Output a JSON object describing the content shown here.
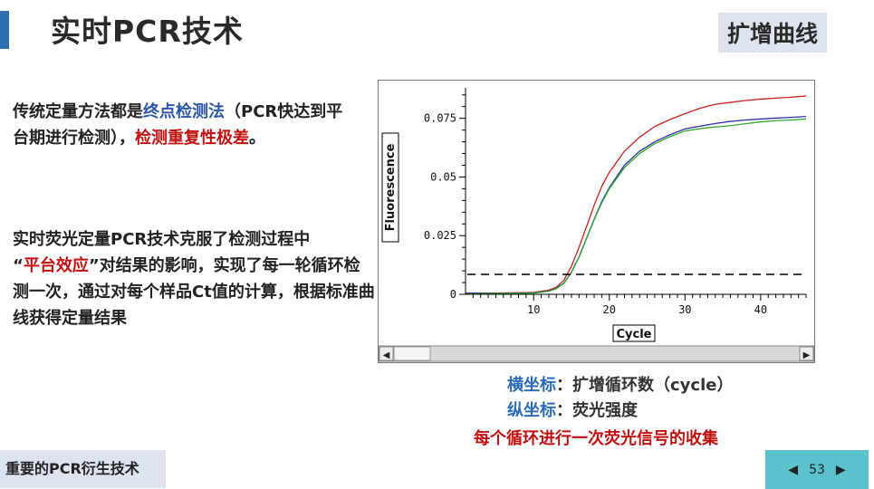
{
  "slide": {
    "title": "实时PCR技术",
    "tag": "扩增曲线",
    "para1": {
      "a": "传统定量方法都是",
      "b": "终点检测法",
      "c": "（PCR快达到平台期进行检测），",
      "d": "检测重复性极差",
      "e": "。"
    },
    "para2": {
      "a": "实时荧光定量PCR技术克服了检测过程中",
      "b": "“",
      "c": "平台效应",
      "d": "”对结果的影响，实现了每一轮循环检测一次，通过对每个样品Ct值的计算，根据标准曲线获得定量结果"
    },
    "caption1_key": "横坐标",
    "caption1_val": "：扩增循环数（cycle）",
    "caption2_key": "纵坐标",
    "caption2_val": "：荧光强度",
    "caption3": "每个循环进行一次荧光信号的收集",
    "footer_left": "重要的PCR衍生技术",
    "page_number": "53",
    "prev_icon": "◀",
    "next_icon": "▶"
  },
  "chart_data": {
    "type": "line",
    "xlabel": "Cycle",
    "ylabel": "Fluorescence",
    "xlim": [
      1,
      46
    ],
    "ylim": [
      0,
      0.088
    ],
    "x_ticks": [
      10,
      20,
      30,
      40
    ],
    "y_ticks": [
      {
        "value": 0,
        "label": "0"
      },
      {
        "value": 0.025,
        "label": "0.025"
      },
      {
        "value": 0.05,
        "label": "0.05"
      },
      {
        "value": 0.075,
        "label": "0.075"
      }
    ],
    "threshold": 0.0085,
    "colors": {
      "red": "#cc1f1f",
      "blue": "#2a2fa8",
      "green": "#2ea82e",
      "threshold": "#000000"
    },
    "series": [
      {
        "color": "red",
        "x": [
          1,
          5,
          10,
          12,
          13,
          14,
          15,
          16,
          17,
          18,
          19,
          20,
          22,
          24,
          26,
          28,
          30,
          32,
          34,
          36,
          38,
          40,
          42,
          44,
          46
        ],
        "y": [
          0.0005,
          0.0005,
          0.0008,
          0.0018,
          0.003,
          0.006,
          0.012,
          0.02,
          0.029,
          0.038,
          0.046,
          0.052,
          0.061,
          0.067,
          0.0715,
          0.0745,
          0.077,
          0.0793,
          0.081,
          0.0818,
          0.0826,
          0.0832,
          0.0836,
          0.084,
          0.0845
        ]
      },
      {
        "color": "blue",
        "x": [
          1,
          5,
          10,
          12,
          13,
          14,
          15,
          16,
          17,
          18,
          19,
          20,
          22,
          24,
          26,
          28,
          30,
          32,
          34,
          36,
          38,
          40,
          42,
          44,
          46
        ],
        "y": [
          0.0005,
          0.0004,
          0.0006,
          0.0014,
          0.0025,
          0.0048,
          0.0095,
          0.016,
          0.024,
          0.032,
          0.0395,
          0.0455,
          0.055,
          0.061,
          0.065,
          0.068,
          0.0705,
          0.0717,
          0.0728,
          0.0737,
          0.0743,
          0.0747,
          0.0751,
          0.0754,
          0.0758
        ]
      },
      {
        "color": "green",
        "x": [
          1,
          5,
          10,
          12,
          13,
          14,
          15,
          16,
          17,
          18,
          19,
          20,
          22,
          24,
          26,
          28,
          30,
          32,
          34,
          36,
          38,
          40,
          42,
          44,
          46
        ],
        "y": [
          0.0002,
          0.0003,
          0.0005,
          0.0013,
          0.0024,
          0.0047,
          0.0093,
          0.0158,
          0.0238,
          0.0318,
          0.039,
          0.045,
          0.054,
          0.06,
          0.0642,
          0.0672,
          0.0696,
          0.0706,
          0.0713,
          0.0719,
          0.0727,
          0.0735,
          0.074,
          0.0743,
          0.0747
        ]
      }
    ]
  }
}
